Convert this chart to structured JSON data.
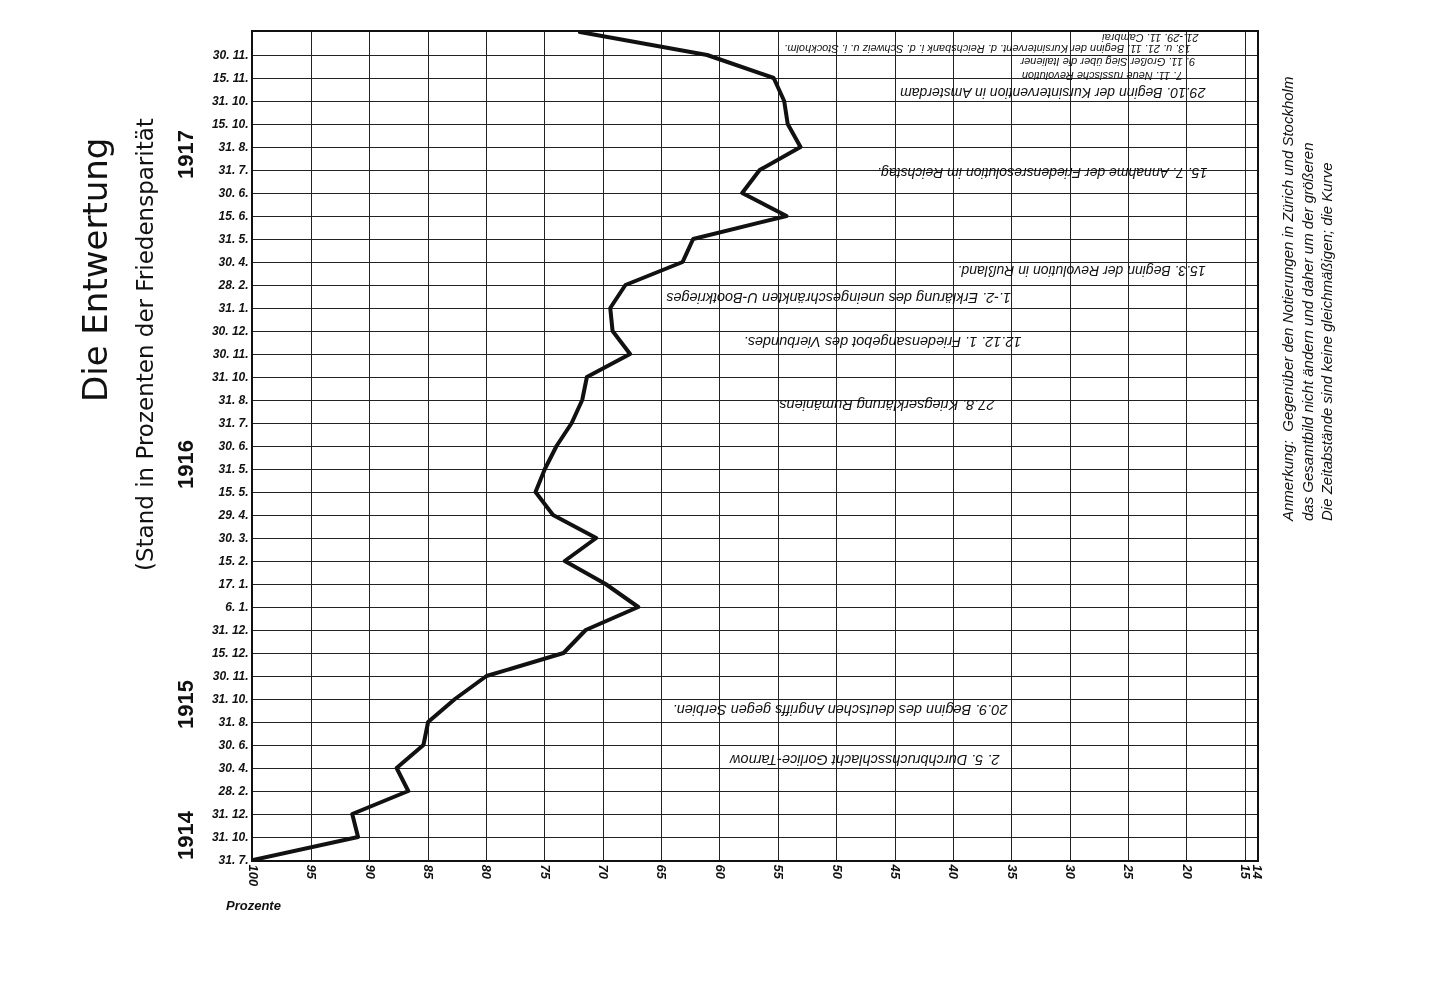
{
  "chart_data": {
    "type": "line",
    "orientation": "horizontal",
    "title": "Die Entwertung",
    "subtitle": "(Stand in Prozenten der Friedensparität",
    "xlabel": "Prozente",
    "categories": [
      null,
      "30. 11.",
      "15. 11.",
      "31. 10.",
      "15. 10.",
      "31. 8.",
      "31. 7.",
      "30. 6.",
      "15. 6.",
      "31. 5.",
      "30. 4.",
      "28. 2.",
      "31. 1.",
      "30. 12.",
      "30. 11.",
      "31. 10.",
      "31. 8.",
      "31. 7.",
      "30. 6.",
      "31. 5.",
      "15. 5.",
      "29. 4.",
      "30. 3.",
      "15. 2.",
      "17. 1.",
      "6. 1.",
      "31. 12.",
      "15. 12.",
      "30. 11.",
      "31. 10.",
      "31. 8.",
      "30. 6.",
      "30. 4.",
      "28. 2.",
      "31. 12.",
      "31. 10.",
      "31. 7."
    ],
    "values": [
      72,
      61.1,
      55.4,
      54.5,
      54.2,
      53.1,
      56.6,
      58.1,
      54.3,
      62.3,
      63.2,
      68.1,
      69.4,
      69.2,
      67.7,
      71.4,
      71.8,
      72.7,
      74,
      75,
      75.8,
      74.3,
      70.6,
      73.3,
      69.8,
      67,
      71.5,
      73.4,
      80,
      82.7,
      85,
      85.4,
      87.7,
      86.7,
      91.5,
      91,
      100
    ],
    "color": "#111111",
    "line_style": "solid",
    "marker": "none",
    "xlim": [
      100,
      14
    ],
    "xticks": [
      100,
      95,
      90,
      85,
      80,
      75,
      70,
      65,
      60,
      55,
      50,
      45,
      40,
      35,
      30,
      25,
      20,
      15,
      14
    ],
    "grid": true,
    "annotations": [
      "2. 5. Durchbruchsschlacht Gorlice-Tarnow",
      "20.9. Beginn des deutschen Angriffs gegen Serbien.",
      "27.8. Kriegserklärung Rumäniens.",
      "12.12. 1. Friedensangebot des Vierbundes.",
      "1.-2. Erklärung des uneingeschränkten U-Bootkrieges",
      "15.3. Beginn der Revolution in Rußland.",
      "15. 7. Annahme der Friedensresolution im Reichstag.",
      "29.10. Beginn der Kursintervention in Amsterdam",
      "7. 11. Neue russische Revolution",
      "9. 11. Großer Sieg über die Italiener",
      "13. u. 21. 11. Beginn der Kursintervent. d. Reichsbank i. d. Schweiz u. i. Stockholm.",
      "21.-29. 11. Cambrai",
      "1914",
      "1915",
      "1916",
      "1917",
      "Anmerkung:  Gegenüber den Notierungen in Zürich und Stockholm\ndas Gesamtbild nicht ändern und daher um der größeren\nDie Zeitabstände sind keine gleichmäßigen; die Kurve"
    ]
  }
}
